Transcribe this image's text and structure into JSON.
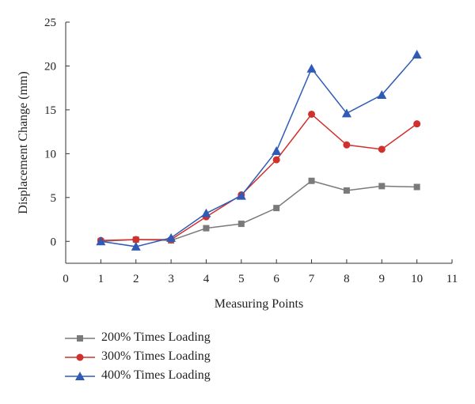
{
  "chart_data": {
    "type": "line",
    "xlabel": "Measuring Points",
    "ylabel": "Displacement Change (mm)",
    "xlim": [
      0,
      11
    ],
    "ylim": [
      -2.5,
      25
    ],
    "x_ticks": [
      "0",
      "1",
      "2",
      "3",
      "4",
      "5",
      "6",
      "7",
      "8",
      "9",
      "10",
      "11"
    ],
    "y_ticks": [
      "0",
      "5",
      "10",
      "15",
      "20",
      "25"
    ],
    "grid": false,
    "legend_position": "bottom",
    "x": [
      1,
      2,
      3,
      4,
      5,
      6,
      7,
      8,
      9,
      10
    ],
    "series": [
      {
        "name": "200% Times Loading",
        "color": "#7a7a7a",
        "marker": "square",
        "values": [
          0.0,
          0.2,
          0.1,
          1.5,
          2.0,
          3.8,
          6.9,
          5.8,
          6.3,
          6.2
        ]
      },
      {
        "name": "300% Times Loading",
        "color": "#d0312d",
        "marker": "circle",
        "values": [
          0.1,
          0.2,
          0.2,
          2.8,
          5.3,
          9.3,
          14.5,
          11.0,
          10.5,
          13.4
        ]
      },
      {
        "name": "400% Times Loading",
        "color": "#2f5bb7",
        "marker": "triangle",
        "values": [
          0.0,
          -0.6,
          0.4,
          3.2,
          5.2,
          10.3,
          19.7,
          14.6,
          16.7,
          21.3
        ]
      }
    ]
  }
}
